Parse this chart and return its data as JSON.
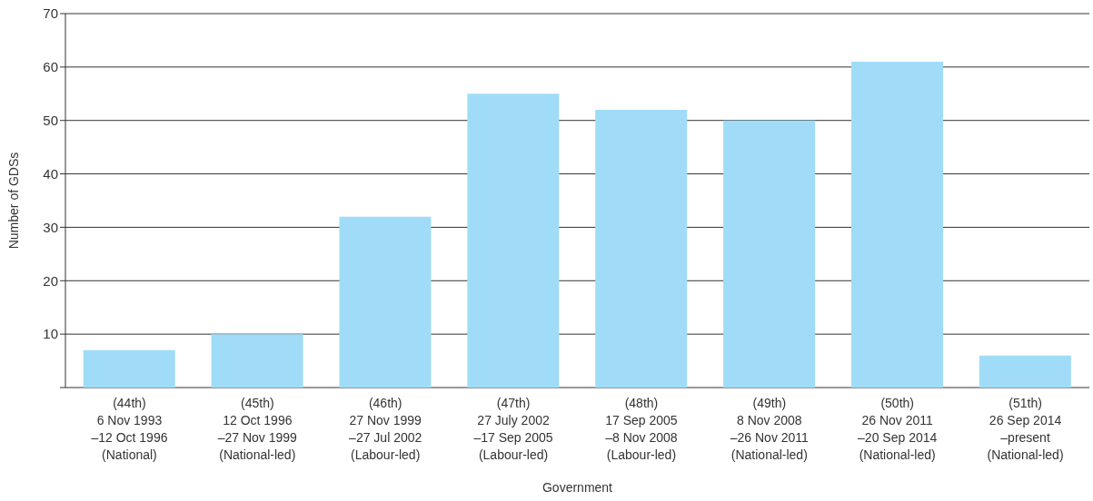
{
  "chart_data": {
    "type": "bar",
    "xlabel": "Government",
    "ylabel": "Number of GDSs",
    "categories": [
      "(44th)\n6 Nov 1993\n–12 Oct 1996\n(National)",
      "(45th)\n12 Oct 1996\n–27 Nov 1999\n(National-led)",
      "(46th)\n27 Nov 1999\n–27 Jul 2002\n(Labour-led)",
      "(47th)\n27 July 2002\n–17 Sep 2005\n(Labour-led)",
      "(48th)\n17 Sep 2005\n–8 Nov 2008\n(Labour-led)",
      "(49th)\n8 Nov 2008\n–26 Nov 2011\n(National-led)",
      "(50th)\n26 Nov 2011\n–20 Sep 2014\n(National-led)",
      "(51th)\n26 Sep 2014\n–present\n(National-led)"
    ],
    "values": [
      7,
      10,
      32,
      55,
      52,
      50,
      61,
      6
    ],
    "color": "#a0dcf7",
    "ylim": [
      0,
      70
    ],
    "yticks": [
      {
        "value": 0,
        "label": null
      },
      10,
      20,
      30,
      40,
      50,
      60,
      70
    ],
    "grid": "y"
  }
}
